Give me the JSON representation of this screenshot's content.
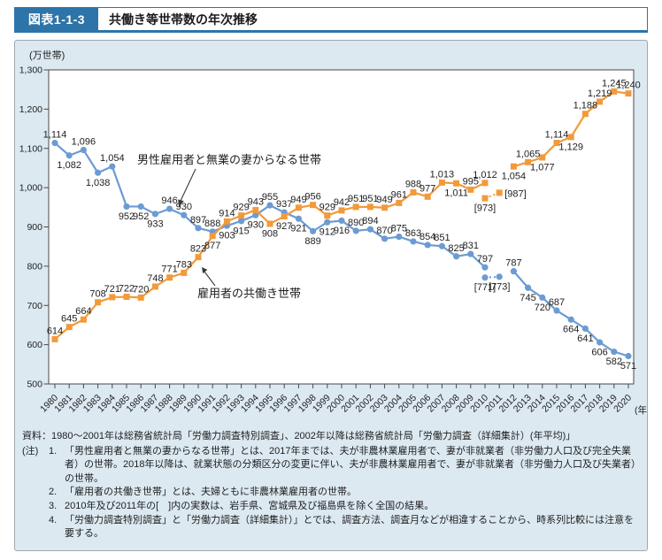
{
  "header": {
    "tag": "図表1-1-3",
    "title": "共働き等世帯数の年次推移"
  },
  "chart_data": {
    "type": "line",
    "unit_label": "(万世帯)",
    "x_unit_label": "(年)",
    "ylim": [
      500,
      1300
    ],
    "y_tick_values": [
      500,
      600,
      700,
      800,
      900,
      1000,
      1100,
      1200,
      1300
    ],
    "y_tick_labels": [
      "500",
      "600",
      "700",
      "800",
      "900",
      "1,000",
      "1,100",
      "1,200",
      "1,300"
    ],
    "years": [
      "1980",
      "1981",
      "1982",
      "1983",
      "1984",
      "1985",
      "1986",
      "1987",
      "1988",
      "1989",
      "1990",
      "1991",
      "1992",
      "1993",
      "1994",
      "1995",
      "1996",
      "1997",
      "1998",
      "1999",
      "2000",
      "2001",
      "2002",
      "2003",
      "2004",
      "2005",
      "2006",
      "2007",
      "2008",
      "2009",
      "2010",
      "2011",
      "2012",
      "2013",
      "2014",
      "2015",
      "2016",
      "2017",
      "2018",
      "2019",
      "2020"
    ],
    "grid": false,
    "legend": "inline-annotations",
    "annotations": [
      {
        "text": "男性雇用者と無業の妻からなる世帯",
        "target_series": "男性雇用者と無業の妻からなる世帯"
      },
      {
        "text": "雇用者の共働き世帯",
        "target_series": "雇用者の共働き世帯"
      }
    ],
    "series": [
      {
        "name": "男性雇用者と無業の妻からなる世帯",
        "color": "#6c9bd3",
        "marker": "circle",
        "segments": [
          {
            "start_year": 1980,
            "values": [
              1114,
              1082,
              1096,
              1038,
              1054,
              952,
              952,
              933,
              946,
              930,
              897,
              888,
              903,
              915,
              930,
              955,
              937,
              921,
              889,
              912,
              916,
              890,
              894,
              870,
              875,
              863,
              854,
              851,
              825,
              831,
              797
            ],
            "label_pos": [
              "a",
              "b",
              "a",
              "b",
              "a",
              "b",
              "b",
              "b",
              "a",
              "a",
              "a",
              "a",
              "b",
              "b",
              "b",
              "a",
              "a",
              "b",
              "b",
              "b",
              "b",
              "a",
              "a",
              "a",
              "a",
              "a",
              "a",
              "a",
              "a",
              "a",
              "a"
            ]
          },
          {
            "start_year": 2012,
            "values": [
              787,
              745,
              720,
              687,
              664,
              641,
              606,
              582,
              571
            ],
            "label_pos": [
              "a",
              "b",
              "b",
              "a",
              "b",
              "b",
              "b",
              "b",
              "b"
            ]
          }
        ],
        "bracketed": {
          "start_year": 2010,
          "values": [
            771,
            773
          ],
          "labels": [
            "[771]",
            "[773]"
          ],
          "label_pos": [
            "b",
            "b"
          ]
        }
      },
      {
        "name": "雇用者の共働き世帯",
        "color": "#f29a3a",
        "marker": "square",
        "segments": [
          {
            "start_year": 1980,
            "values": [
              614,
              645,
              664,
              708,
              721,
              722,
              720,
              748,
              771,
              783,
              823,
              877,
              914,
              929,
              943,
              908,
              927,
              949,
              956,
              929,
              942,
              951,
              951,
              949,
              961,
              988,
              977,
              1013,
              1011,
              995,
              1012
            ],
            "label_pos": [
              "a",
              "a",
              "a",
              "a",
              "a",
              "a",
              "a",
              "a",
              "a",
              "a",
              "a",
              "b",
              "a",
              "a",
              "a",
              "b",
              "b",
              "a",
              "a",
              "a",
              "a",
              "a",
              "a",
              "a",
              "a",
              "a",
              "a",
              "a",
              "b",
              "a",
              "a"
            ]
          },
          {
            "start_year": 2012,
            "values": [
              1054,
              1065,
              1077,
              1114,
              1129,
              1188,
              1219,
              1245,
              1240
            ],
            "label_pos": [
              "b",
              "a",
              "b",
              "a",
              "b",
              "a",
              "a",
              "a",
              "a"
            ]
          }
        ],
        "bracketed": {
          "start_year": 2010,
          "values": [
            973,
            987
          ],
          "labels": [
            "[973]",
            "[987]"
          ],
          "label_pos": [
            "b",
            "r"
          ]
        }
      }
    ]
  },
  "footer": {
    "source_label": "資料：",
    "source": "1980～2001年は総務省統計局「労働力調査特別調査」、2002年以降は総務省統計局「労働力調査（詳細集計）(年平均)」",
    "notes_label": "(注)",
    "notes": [
      {
        "num": "1.",
        "text": "「男性雇用者と無業の妻からなる世帯」とは、2017年までは、夫が非農林業雇用者で、妻が非就業者（非労働力人口及び完全失業者）の世帯。2018年以降は、就業状態の分類区分の変更に伴い、夫が非農林業雇用者で、妻が非就業者（非労働力人口及び失業者）の世帯。"
      },
      {
        "num": "2.",
        "text": "「雇用者の共働き世帯」とは、夫婦ともに非農林業雇用者の世帯。"
      },
      {
        "num": "3.",
        "text": "2010年及び2011年の[　]内の実数は、岩手県、宮城県及び福島県を除く全国の結果。"
      },
      {
        "num": "4.",
        "text": "「労働力調査特別調査」と「労働力調査（詳細集計）」とでは、調査方法、調査月などが相違することから、時系列比較には注意を要する。"
      }
    ]
  }
}
